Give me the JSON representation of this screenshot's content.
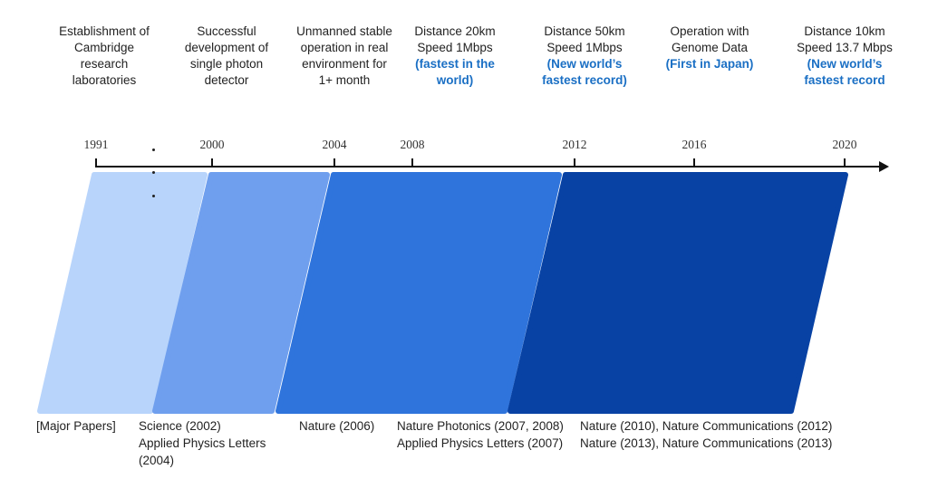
{
  "colors": {
    "highlight": "#1a6fc4",
    "axis": "#111111",
    "phase1": "#b8d4fb",
    "phase2": "#6f9fee",
    "phase3": "#2f74dc",
    "phase4": "#0842a4"
  },
  "milestones": [
    {
      "text": [
        "Establishment of",
        "Cambridge",
        "research",
        "laboratories"
      ],
      "highlight": []
    },
    {
      "text": [
        "Successful",
        "development of",
        "single photon",
        "detector"
      ],
      "highlight": []
    },
    {
      "text": [
        "Unmanned stable",
        "operation in real",
        "environment for",
        "1+ month"
      ],
      "highlight": []
    },
    {
      "text": [
        "Distance 20km",
        "Speed 1Mbps"
      ],
      "highlight": [
        "(fastest in the",
        "world)"
      ]
    },
    {
      "text": [
        "Distance 50km",
        "Speed 1Mbps"
      ],
      "highlight": [
        "(New world’s",
        "fastest record)"
      ]
    },
    {
      "text": [
        "Operation with",
        "Genome Data"
      ],
      "highlight": [
        "(First in Japan)"
      ]
    },
    {
      "text": [
        "Distance 10km",
        "Speed 13.7 Mbps"
      ],
      "highlight": [
        "(New world’s",
        "fastest record"
      ]
    }
  ],
  "years": [
    "1991",
    "2000",
    "2004",
    "2008",
    "2012",
    "2016",
    "2020"
  ],
  "papers_label": "[Major Papers]",
  "papers": [
    [
      "Science (2002)",
      "Applied Physics Letters",
      "(2004)"
    ],
    [
      "Nature (2006)"
    ],
    [
      "Nature Photonics (2007, 2008)",
      "Applied Physics Letters (2007)"
    ],
    [
      "Nature (2010), Nature Communications (2012)",
      "Nature (2013), Nature Communications (2013)"
    ]
  ]
}
